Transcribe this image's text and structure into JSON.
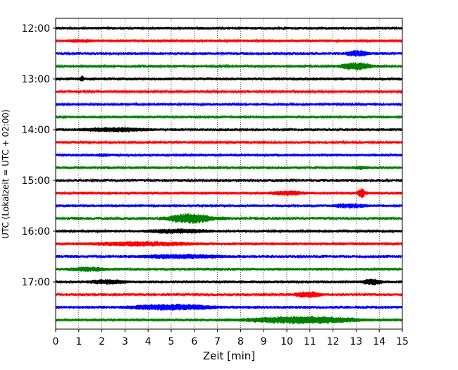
{
  "chart_data": {
    "type": "line",
    "subtype": "helicorder",
    "xlabel": "Zeit  [min]",
    "ylabel": "UTC (Lokalzeit = UTC + 02:00)",
    "xlim": [
      0,
      15
    ],
    "x_ticks": [
      "0",
      "1",
      "2",
      "3",
      "4",
      "5",
      "6",
      "7",
      "8",
      "9",
      "10",
      "11",
      "12",
      "13",
      "14",
      "15"
    ],
    "grid": "vertical dotted",
    "y_tick_labels": [
      {
        "label": "12:00",
        "trace_index": 0
      },
      {
        "label": "13:00",
        "trace_index": 4
      },
      {
        "label": "14:00",
        "trace_index": 8
      },
      {
        "label": "15:00",
        "trace_index": 12
      },
      {
        "label": "16:00",
        "trace_index": 16
      },
      {
        "label": "17:00",
        "trace_index": 20
      }
    ],
    "trace_minutes_per_line": 15,
    "color_cycle": [
      "#000000",
      "#ff0000",
      "#0000ff",
      "#008000"
    ],
    "traces": [
      {
        "start": "12:00",
        "base": 2.0,
        "bursts": []
      },
      {
        "start": "12:15",
        "base": 1.8,
        "bursts": [
          {
            "x": [
              0,
              2.3
            ],
            "amp": 3
          }
        ]
      },
      {
        "start": "12:30",
        "base": 2.0,
        "bursts": [
          {
            "x": [
              12.3,
              14.0
            ],
            "amp": 5
          }
        ]
      },
      {
        "start": "12:45",
        "base": 1.8,
        "bursts": [
          {
            "x": [
              12.0,
              14.2
            ],
            "amp": 6
          }
        ]
      },
      {
        "start": "13:00",
        "base": 2.2,
        "bursts": [
          {
            "x": [
              1.0,
              1.3
            ],
            "amp": 5
          }
        ]
      },
      {
        "start": "13:15",
        "base": 1.6,
        "bursts": []
      },
      {
        "start": "13:30",
        "base": 1.8,
        "bursts": []
      },
      {
        "start": "13:45",
        "base": 2.0,
        "bursts": []
      },
      {
        "start": "14:00",
        "base": 2.0,
        "bursts": [
          {
            "x": [
              0,
              5.6
            ],
            "amp": 4
          }
        ]
      },
      {
        "start": "14:15",
        "base": 1.8,
        "bursts": []
      },
      {
        "start": "14:30",
        "base": 2.0,
        "bursts": [
          {
            "x": [
              1.5,
              2.7
            ],
            "amp": 3
          }
        ]
      },
      {
        "start": "14:45",
        "base": 2.0,
        "bursts": [
          {
            "x": [
              12.5,
              14.0
            ],
            "amp": 3
          }
        ]
      },
      {
        "start": "15:00",
        "base": 2.0,
        "bursts": []
      },
      {
        "start": "15:15",
        "base": 2.2,
        "bursts": [
          {
            "x": [
              8.8,
              11.5
            ],
            "amp": 4
          },
          {
            "x": [
              13.0,
              13.5
            ],
            "amp": 8
          }
        ]
      },
      {
        "start": "15:30",
        "base": 2.0,
        "bursts": [
          {
            "x": [
              11.5,
              14.2
            ],
            "amp": 4
          }
        ]
      },
      {
        "start": "15:45",
        "base": 2.0,
        "bursts": [
          {
            "x": [
              4.5,
              7.4
            ],
            "amp": 8
          }
        ]
      },
      {
        "start": "16:00",
        "base": 1.8,
        "bursts": [
          {
            "x": [
              3.0,
              8.0
            ],
            "amp": 4
          }
        ]
      },
      {
        "start": "16:15",
        "base": 2.2,
        "bursts": [
          {
            "x": [
              0,
              8.3
            ],
            "amp": 4
          }
        ]
      },
      {
        "start": "16:30",
        "base": 2.2,
        "bursts": [
          {
            "x": [
              2.5,
              9.0
            ],
            "amp": 4
          }
        ]
      },
      {
        "start": "16:45",
        "base": 2.2,
        "bursts": [
          {
            "x": [
              0,
              3.0
            ],
            "amp": 4
          }
        ]
      },
      {
        "start": "17:00",
        "base": 2.0,
        "bursts": [
          {
            "x": [
              0.8,
              4.0
            ],
            "amp": 4
          },
          {
            "x": [
              13.0,
              14.5
            ],
            "amp": 5
          }
        ]
      },
      {
        "start": "17:15",
        "base": 2.0,
        "bursts": [
          {
            "x": [
              10.0,
              12.0
            ],
            "amp": 5
          }
        ]
      },
      {
        "start": "17:30",
        "base": 2.2,
        "bursts": [
          {
            "x": [
              2.0,
              8.7
            ],
            "amp": 5
          }
        ]
      },
      {
        "start": "17:45",
        "base": 2.2,
        "bursts": [
          {
            "x": [
              7.0,
              15.0
            ],
            "amp": 6
          }
        ]
      }
    ]
  }
}
